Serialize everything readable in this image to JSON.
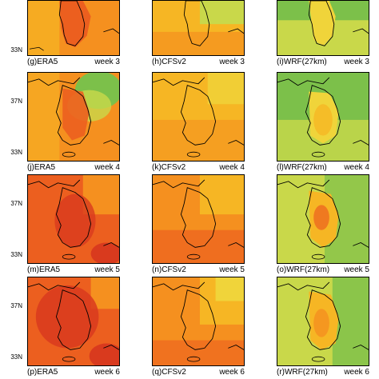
{
  "lat_labels": {
    "north": "37N",
    "south": "33N"
  },
  "rows": [
    {
      "id": "week3",
      "captions": [
        {
          "label": "(g)ERA5",
          "week": "week 3"
        },
        {
          "label": "(h)CFSv2",
          "week": "week 3"
        },
        {
          "label": "(i)WRF(27km)",
          "week": "week 3"
        }
      ]
    },
    {
      "id": "week4",
      "captions": [
        {
          "label": "(j)ERA5",
          "week": "week 4"
        },
        {
          "label": "(k)CFSv2",
          "week": "week 4"
        },
        {
          "label": "(l)WRF(27km)",
          "week": "week 4"
        }
      ]
    },
    {
      "id": "week5",
      "captions": [
        {
          "label": "(m)ERA5",
          "week": "week 5"
        },
        {
          "label": "(n)CFSv2",
          "week": "week 5"
        },
        {
          "label": "(o)WRF(27km)",
          "week": "week 5"
        }
      ]
    },
    {
      "id": "week6",
      "captions": [
        {
          "label": "(p)ERA5",
          "week": "week 6"
        },
        {
          "label": "(q)CFSv2",
          "week": "week 6"
        },
        {
          "label": "(r)WRF(27km)",
          "week": "week 6"
        }
      ]
    }
  ],
  "colors": {
    "red": "#d93a1e",
    "orange_red": "#ec5f1f",
    "orange": "#f5901f",
    "yellow_orange": "#f6b624",
    "yellow": "#f0d43a",
    "green_yellow": "#c9d84a",
    "green": "#7cc04a",
    "coast": "#000000"
  }
}
